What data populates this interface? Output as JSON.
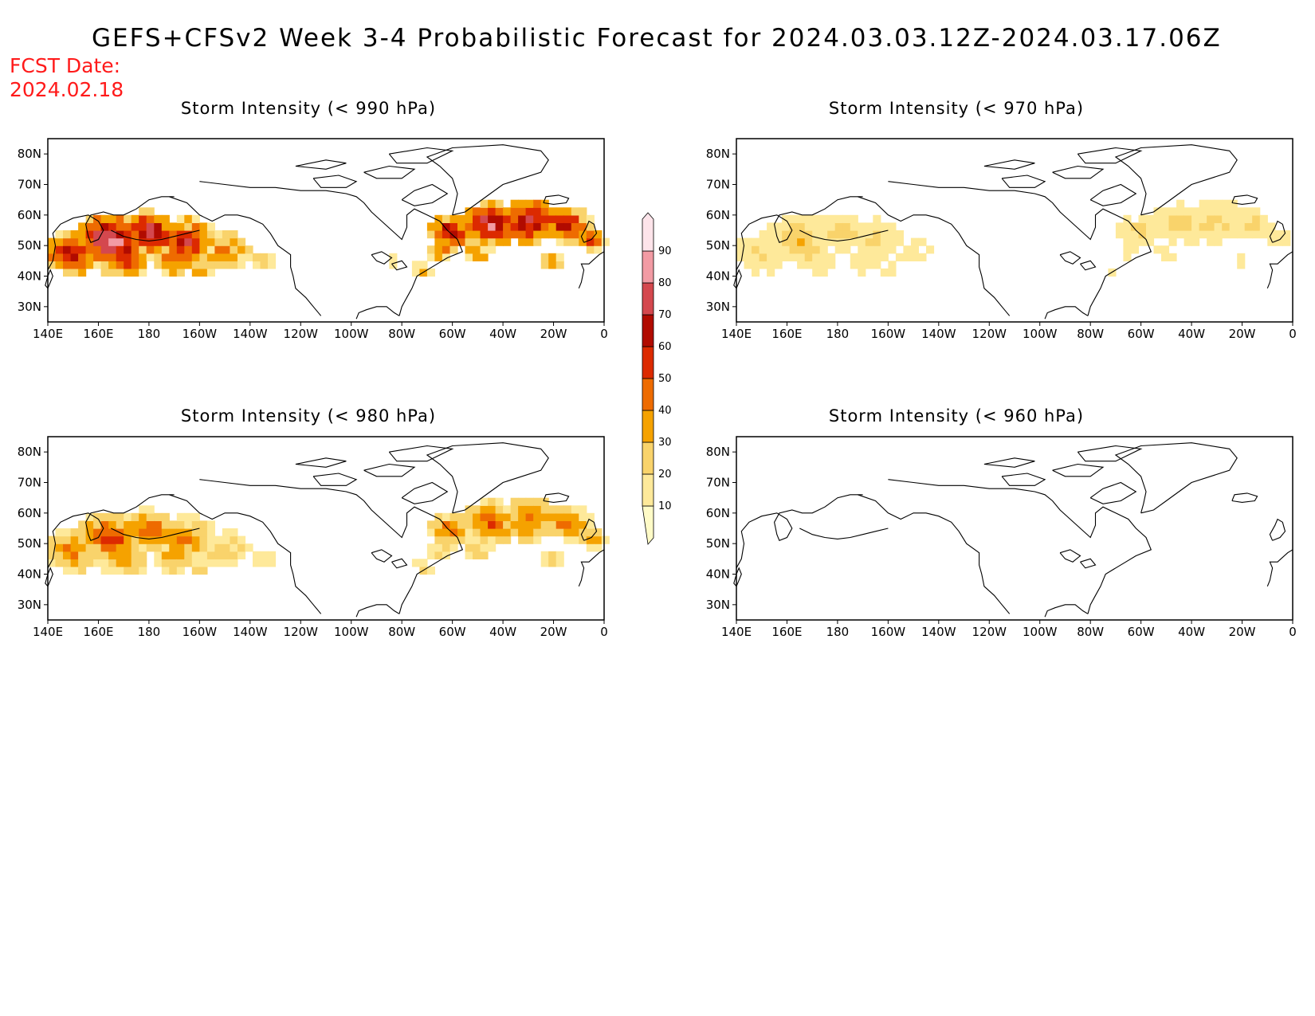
{
  "title": "GEFS+CFSv2 Week 3-4 Probabilistic Forecast for 2024.03.03.12Z-2024.03.17.06Z",
  "fcst_date": {
    "label": "FCST Date:",
    "value": "2024.02.18"
  },
  "panels": [
    {
      "title": "Storm Intensity (< 990 hPa)",
      "intensity": 1.0
    },
    {
      "title": "Storm Intensity (< 970 hPa)",
      "intensity": 0.35
    },
    {
      "title": "Storm Intensity (< 980 hPa)",
      "intensity": 0.65
    },
    {
      "title": "Storm Intensity (< 960 hPa)",
      "intensity": 0.02
    }
  ],
  "axes": {
    "lat_labels": [
      "80N",
      "70N",
      "60N",
      "50N",
      "40N",
      "30N"
    ],
    "lon_labels": [
      "140E",
      "160E",
      "180",
      "160W",
      "140W",
      "120W",
      "100W",
      "80W",
      "60W",
      "40W",
      "20W",
      "0"
    ]
  },
  "colorbar": {
    "levels": [
      "10",
      "20",
      "30",
      "40",
      "50",
      "60",
      "70",
      "80",
      "90"
    ],
    "colors": [
      "#fffbc7",
      "#fee99a",
      "#f9d36b",
      "#f5a200",
      "#ee6b00",
      "#dc2a00",
      "#b10b00",
      "#d4484e",
      "#f29ba4",
      "#fde4ea"
    ]
  }
}
